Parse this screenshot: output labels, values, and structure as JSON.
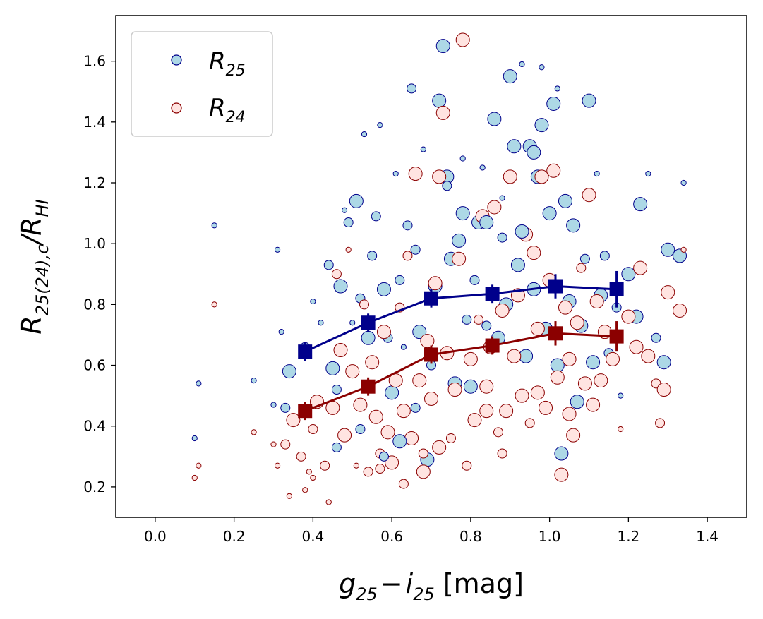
{
  "chart_data": {
    "type": "scatter",
    "xlabel": {
      "main": "g",
      "sub1": "25",
      "minus": "−",
      "main2": "i",
      "sub2": "25",
      "unit": " [mag]"
    },
    "ylabel": {
      "main": "R",
      "sub1": "25(24),c",
      "slash": "/R",
      "sub2": "HI"
    },
    "xlim": [
      -0.1,
      1.5
    ],
    "ylim": [
      0.1,
      1.75
    ],
    "xticks": [
      "0.0",
      "0.2",
      "0.4",
      "0.6",
      "0.8",
      "1.0",
      "1.2",
      "1.4"
    ],
    "yticks": [
      "0.2",
      "0.4",
      "0.6",
      "0.8",
      "1.0",
      "1.2",
      "1.4",
      "1.6"
    ],
    "legend": {
      "position": "upper-left",
      "entries": [
        {
          "main": "R",
          "sub": "25"
        },
        {
          "main": "R",
          "sub": "24"
        }
      ]
    },
    "colors": {
      "r25_fill": "#add8e6",
      "r25_edge": "#00008b",
      "r24_fill": "#ffe4e1",
      "r24_edge": "#8b0000"
    },
    "series": [
      {
        "name": "R25",
        "scatter_points": [
          [
            0.1,
            0.36,
            1
          ],
          [
            0.11,
            0.54,
            1
          ],
          [
            0.15,
            1.06,
            1
          ],
          [
            0.25,
            0.55,
            1
          ],
          [
            0.31,
            0.98,
            1
          ],
          [
            0.33,
            0.46,
            2
          ],
          [
            0.34,
            0.58,
            3
          ],
          [
            0.32,
            0.71,
            1
          ],
          [
            0.3,
            0.47,
            1
          ],
          [
            0.38,
            0.66,
            2
          ],
          [
            0.4,
            0.81,
            1
          ],
          [
            0.42,
            0.74,
            1
          ],
          [
            0.44,
            0.93,
            2
          ],
          [
            0.45,
            0.59,
            3
          ],
          [
            0.46,
            0.52,
            2
          ],
          [
            0.47,
            0.86,
            3
          ],
          [
            0.48,
            1.11,
            1
          ],
          [
            0.49,
            1.07,
            2
          ],
          [
            0.5,
            0.74,
            1
          ],
          [
            0.51,
            1.14,
            3
          ],
          [
            0.52,
            0.82,
            2
          ],
          [
            0.53,
            1.36,
            1
          ],
          [
            0.54,
            0.69,
            3
          ],
          [
            0.55,
            0.96,
            2
          ],
          [
            0.56,
            1.09,
            2
          ],
          [
            0.57,
            1.39,
            1
          ],
          [
            0.58,
            0.85,
            3
          ],
          [
            0.59,
            0.69,
            2
          ],
          [
            0.6,
            0.51,
            3
          ],
          [
            0.61,
            1.23,
            1
          ],
          [
            0.62,
            0.88,
            2
          ],
          [
            0.63,
            0.66,
            1
          ],
          [
            0.64,
            1.06,
            2
          ],
          [
            0.65,
            1.51,
            2
          ],
          [
            0.66,
            0.98,
            2
          ],
          [
            0.67,
            0.71,
            3
          ],
          [
            0.68,
            1.31,
            1
          ],
          [
            0.69,
            0.29,
            3
          ],
          [
            0.7,
            0.6,
            2
          ],
          [
            0.71,
            0.86,
            3
          ],
          [
            0.72,
            1.47,
            3
          ],
          [
            0.73,
            1.65,
            3
          ],
          [
            0.74,
            1.22,
            3
          ],
          [
            0.75,
            0.95,
            3
          ],
          [
            0.76,
            0.54,
            3
          ],
          [
            0.77,
            1.01,
            3
          ],
          [
            0.78,
            1.1,
            3
          ],
          [
            0.79,
            0.75,
            2
          ],
          [
            0.8,
            0.53,
            3
          ],
          [
            0.81,
            0.88,
            2
          ],
          [
            0.82,
            1.07,
            3
          ],
          [
            0.83,
            1.25,
            1
          ],
          [
            0.84,
            0.73,
            2
          ],
          [
            0.86,
            1.41,
            3
          ],
          [
            0.87,
            0.69,
            3
          ],
          [
            0.88,
            1.02,
            2
          ],
          [
            0.89,
            0.8,
            3
          ],
          [
            0.9,
            1.55,
            3
          ],
          [
            0.91,
            1.32,
            3
          ],
          [
            0.92,
            0.93,
            3
          ],
          [
            0.93,
            1.59,
            1
          ],
          [
            0.94,
            0.63,
            3
          ],
          [
            0.95,
            1.32,
            3
          ],
          [
            0.96,
            0.85,
            3
          ],
          [
            0.97,
            1.22,
            3
          ],
          [
            0.98,
            1.39,
            3
          ],
          [
            0.99,
            0.72,
            3
          ],
          [
            1.0,
            1.1,
            3
          ],
          [
            1.01,
            1.46,
            3
          ],
          [
            1.02,
            0.6,
            3
          ],
          [
            1.03,
            0.31,
            3
          ],
          [
            1.04,
            1.14,
            3
          ],
          [
            1.05,
            0.81,
            3
          ],
          [
            1.06,
            1.06,
            3
          ],
          [
            1.07,
            0.48,
            3
          ],
          [
            1.08,
            0.73,
            3
          ],
          [
            1.09,
            0.95,
            2
          ],
          [
            1.1,
            1.47,
            3
          ],
          [
            1.11,
            0.61,
            3
          ],
          [
            1.12,
            1.23,
            1
          ],
          [
            1.13,
            0.83,
            3
          ],
          [
            1.14,
            0.96,
            2
          ],
          [
            1.15,
            0.64,
            2
          ],
          [
            1.17,
            0.79,
            2
          ],
          [
            1.18,
            0.5,
            1
          ],
          [
            1.2,
            0.9,
            3
          ],
          [
            1.22,
            0.76,
            3
          ],
          [
            1.23,
            1.13,
            3
          ],
          [
            1.25,
            1.23,
            1
          ],
          [
            1.27,
            0.69,
            2
          ],
          [
            1.29,
            0.61,
            3
          ],
          [
            1.3,
            0.98,
            3
          ],
          [
            1.33,
            0.96,
            3
          ],
          [
            1.34,
            1.2,
            1
          ],
          [
            0.62,
            0.35,
            3
          ],
          [
            0.58,
            0.3,
            2
          ],
          [
            0.52,
            0.39,
            2
          ],
          [
            0.46,
            0.33,
            2
          ],
          [
            0.66,
            0.46,
            2
          ],
          [
            0.78,
            1.28,
            1
          ],
          [
            0.88,
            1.15,
            1
          ],
          [
            0.98,
            1.58,
            1
          ],
          [
            1.02,
            1.51,
            1
          ],
          [
            0.84,
            1.07,
            3
          ],
          [
            0.93,
            1.04,
            3
          ],
          [
            0.74,
            1.19,
            2
          ],
          [
            0.96,
            1.3,
            3
          ]
        ],
        "binned_x": [
          0.38,
          0.54,
          0.7,
          0.855,
          1.015,
          1.17
        ],
        "binned_y": [
          0.645,
          0.74,
          0.82,
          0.835,
          0.86,
          0.85
        ],
        "binned_err": [
          0.03,
          0.03,
          0.03,
          0.03,
          0.04,
          0.06
        ]
      },
      {
        "name": "R24",
        "scatter_points": [
          [
            0.1,
            0.23,
            1
          ],
          [
            0.11,
            0.27,
            1
          ],
          [
            0.15,
            0.8,
            1
          ],
          [
            0.25,
            0.38,
            1
          ],
          [
            0.3,
            0.34,
            1
          ],
          [
            0.31,
            0.27,
            1
          ],
          [
            0.33,
            0.34,
            2
          ],
          [
            0.34,
            0.17,
            1
          ],
          [
            0.35,
            0.42,
            3
          ],
          [
            0.37,
            0.3,
            2
          ],
          [
            0.39,
            0.25,
            1
          ],
          [
            0.4,
            0.39,
            2
          ],
          [
            0.41,
            0.48,
            3
          ],
          [
            0.43,
            0.27,
            2
          ],
          [
            0.44,
            0.15,
            1
          ],
          [
            0.45,
            0.46,
            3
          ],
          [
            0.46,
            0.9,
            2
          ],
          [
            0.47,
            0.65,
            3
          ],
          [
            0.48,
            0.37,
            3
          ],
          [
            0.49,
            0.98,
            1
          ],
          [
            0.5,
            0.58,
            3
          ],
          [
            0.51,
            0.27,
            1
          ],
          [
            0.52,
            0.47,
            3
          ],
          [
            0.53,
            0.8,
            2
          ],
          [
            0.54,
            0.25,
            2
          ],
          [
            0.55,
            0.61,
            3
          ],
          [
            0.56,
            0.43,
            3
          ],
          [
            0.57,
            0.31,
            2
          ],
          [
            0.58,
            0.71,
            3
          ],
          [
            0.59,
            0.38,
            3
          ],
          [
            0.6,
            0.28,
            3
          ],
          [
            0.61,
            0.55,
            3
          ],
          [
            0.62,
            0.79,
            2
          ],
          [
            0.63,
            0.45,
            3
          ],
          [
            0.64,
            0.96,
            2
          ],
          [
            0.65,
            0.36,
            3
          ],
          [
            0.66,
            1.23,
            3
          ],
          [
            0.67,
            0.55,
            3
          ],
          [
            0.68,
            0.25,
            3
          ],
          [
            0.69,
            0.68,
            3
          ],
          [
            0.7,
            0.49,
            3
          ],
          [
            0.71,
            0.87,
            3
          ],
          [
            0.72,
            1.22,
            3
          ],
          [
            0.73,
            1.43,
            3
          ],
          [
            0.74,
            0.64,
            3
          ],
          [
            0.75,
            0.36,
            2
          ],
          [
            0.76,
            0.52,
            3
          ],
          [
            0.77,
            0.95,
            3
          ],
          [
            0.78,
            1.67,
            3
          ],
          [
            0.79,
            0.27,
            2
          ],
          [
            0.8,
            0.62,
            3
          ],
          [
            0.81,
            0.42,
            3
          ],
          [
            0.82,
            0.75,
            2
          ],
          [
            0.83,
            1.09,
            3
          ],
          [
            0.84,
            0.53,
            3
          ],
          [
            0.85,
            0.66,
            3
          ],
          [
            0.86,
            1.12,
            3
          ],
          [
            0.87,
            0.38,
            2
          ],
          [
            0.88,
            0.78,
            3
          ],
          [
            0.89,
            0.45,
            3
          ],
          [
            0.9,
            1.22,
            3
          ],
          [
            0.91,
            0.63,
            3
          ],
          [
            0.92,
            0.83,
            3
          ],
          [
            0.93,
            0.5,
            3
          ],
          [
            0.94,
            1.03,
            3
          ],
          [
            0.95,
            0.41,
            2
          ],
          [
            0.96,
            0.97,
            3
          ],
          [
            0.97,
            0.72,
            3
          ],
          [
            0.98,
            1.22,
            3
          ],
          [
            0.99,
            0.46,
            3
          ],
          [
            1.0,
            0.88,
            3
          ],
          [
            1.01,
            1.24,
            3
          ],
          [
            1.02,
            0.56,
            3
          ],
          [
            1.03,
            0.24,
            3
          ],
          [
            1.04,
            0.79,
            3
          ],
          [
            1.05,
            0.62,
            3
          ],
          [
            1.06,
            0.37,
            3
          ],
          [
            1.07,
            0.74,
            3
          ],
          [
            1.08,
            0.92,
            2
          ],
          [
            1.09,
            0.54,
            3
          ],
          [
            1.1,
            1.16,
            3
          ],
          [
            1.11,
            0.47,
            3
          ],
          [
            1.12,
            0.81,
            3
          ],
          [
            1.13,
            0.55,
            3
          ],
          [
            1.14,
            0.71,
            3
          ],
          [
            1.16,
            0.62,
            3
          ],
          [
            1.18,
            0.39,
            1
          ],
          [
            1.2,
            0.76,
            3
          ],
          [
            1.22,
            0.66,
            3
          ],
          [
            1.23,
            0.92,
            3
          ],
          [
            1.25,
            0.63,
            3
          ],
          [
            1.27,
            0.54,
            2
          ],
          [
            1.28,
            0.41,
            2
          ],
          [
            1.29,
            0.52,
            3
          ],
          [
            1.3,
            0.84,
            3
          ],
          [
            1.33,
            0.78,
            3
          ],
          [
            1.34,
            0.98,
            1
          ],
          [
            0.4,
            0.23,
            1
          ],
          [
            0.38,
            0.19,
            1
          ],
          [
            0.63,
            0.21,
            2
          ],
          [
            0.57,
            0.26,
            2
          ],
          [
            0.68,
            0.31,
            2
          ],
          [
            0.72,
            0.33,
            3
          ],
          [
            0.88,
            0.31,
            2
          ],
          [
            0.84,
            0.45,
            3
          ],
          [
            0.97,
            0.51,
            3
          ],
          [
            1.05,
            0.44,
            3
          ]
        ],
        "binned_x": [
          0.38,
          0.54,
          0.7,
          0.855,
          1.015,
          1.17
        ],
        "binned_y": [
          0.45,
          0.53,
          0.635,
          0.665,
          0.705,
          0.695
        ],
        "binned_err": [
          0.03,
          0.03,
          0.03,
          0.03,
          0.04,
          0.05
        ]
      }
    ]
  }
}
